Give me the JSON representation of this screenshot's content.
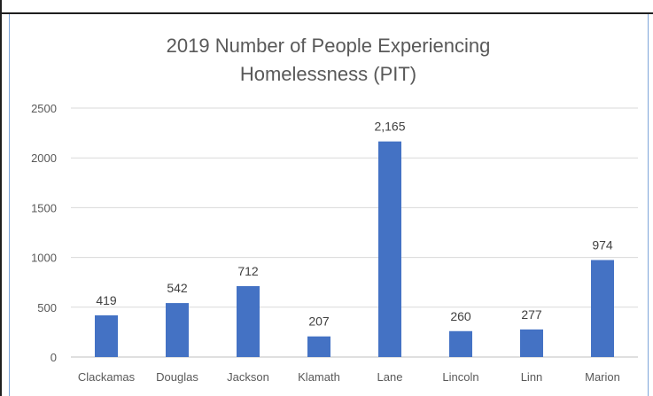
{
  "chart_data": {
    "type": "bar",
    "title_lines": [
      "2019 Number of People Experiencing",
      "Homelessness  (PIT)"
    ],
    "categories": [
      "Clackamas",
      "Douglas",
      "Jackson",
      "Klamath",
      "Lane",
      "Lincoln",
      "Linn",
      "Marion"
    ],
    "values": [
      419,
      542,
      712,
      207,
      2165,
      260,
      277,
      974
    ],
    "data_labels": [
      "419",
      "542",
      "712",
      "207",
      "2,165",
      "260",
      "277",
      "974"
    ],
    "ylim": [
      0,
      2500
    ],
    "yticks": [
      "0",
      "500",
      "1000",
      "1500",
      "2000",
      "2500"
    ],
    "grid": true,
    "bar_color": "#4472c4",
    "grid_color": "#d9d9d9"
  }
}
